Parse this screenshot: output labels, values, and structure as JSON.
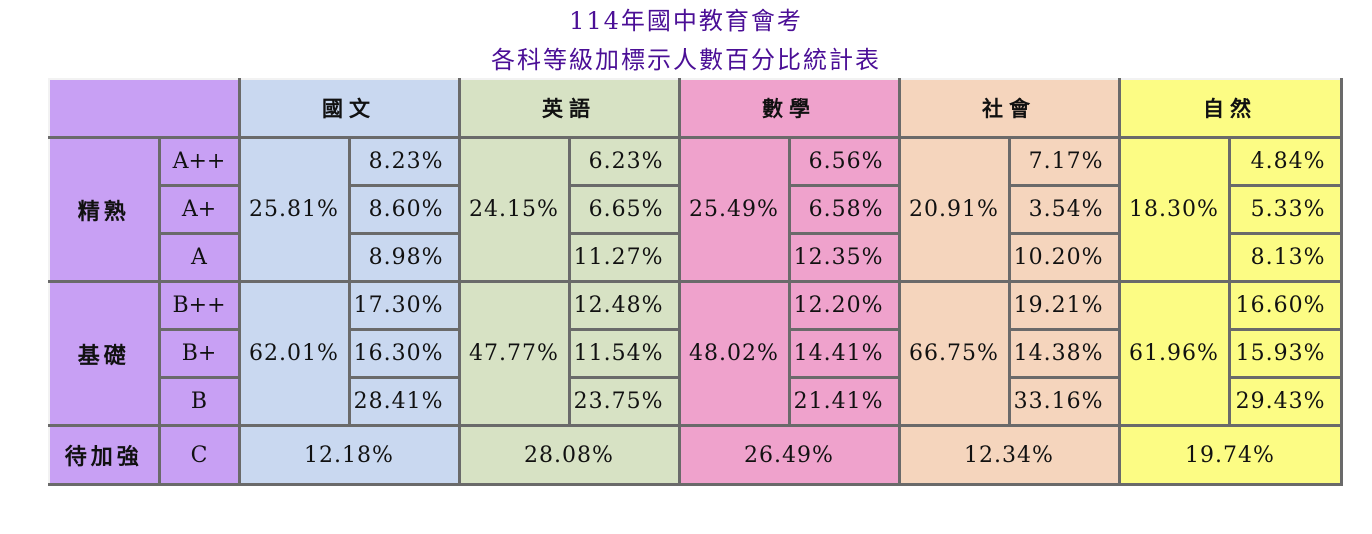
{
  "title_line1": "114年國中教育會考",
  "title_line2": "各科等級加標示人數百分比統計表",
  "colors": {
    "title": "#4b0f96",
    "level_col": "#c8a0f4",
    "chinese": "#c9d8f0",
    "english": "#d7e2c4",
    "math": "#efa2cc",
    "social": "#f5d5bd",
    "science": "#fcfc84"
  },
  "subjects": [
    "國文",
    "英語",
    "數學",
    "社會",
    "自然"
  ],
  "levels": {
    "proficient": "精熟",
    "basic": "基礎",
    "needs_improvement": "待加強"
  },
  "grades": {
    "a_pp": "A++",
    "a_p": "A+",
    "a": "A",
    "b_pp": "B++",
    "b_p": "B+",
    "b": "B",
    "c": "C"
  },
  "proficient_totals": [
    "25.81%",
    "24.15%",
    "25.49%",
    "20.91%",
    "18.30%"
  ],
  "basic_totals": [
    "62.01%",
    "47.77%",
    "48.02%",
    "66.75%",
    "61.96%"
  ],
  "rows": {
    "a_pp": [
      "8.23%",
      "6.23%",
      "6.56%",
      "7.17%",
      "4.84%"
    ],
    "a_p": [
      "8.60%",
      "6.65%",
      "6.58%",
      "3.54%",
      "5.33%"
    ],
    "a": [
      "8.98%",
      "11.27%",
      "12.35%",
      "10.20%",
      "8.13%"
    ],
    "b_pp": [
      "17.30%",
      "12.48%",
      "12.20%",
      "19.21%",
      "16.60%"
    ],
    "b_p": [
      "16.30%",
      "11.54%",
      "14.41%",
      "14.38%",
      "15.93%"
    ],
    "b": [
      "28.41%",
      "23.75%",
      "21.41%",
      "33.16%",
      "29.43%"
    ],
    "c": [
      "12.18%",
      "28.08%",
      "26.49%",
      "12.34%",
      "19.74%"
    ]
  }
}
